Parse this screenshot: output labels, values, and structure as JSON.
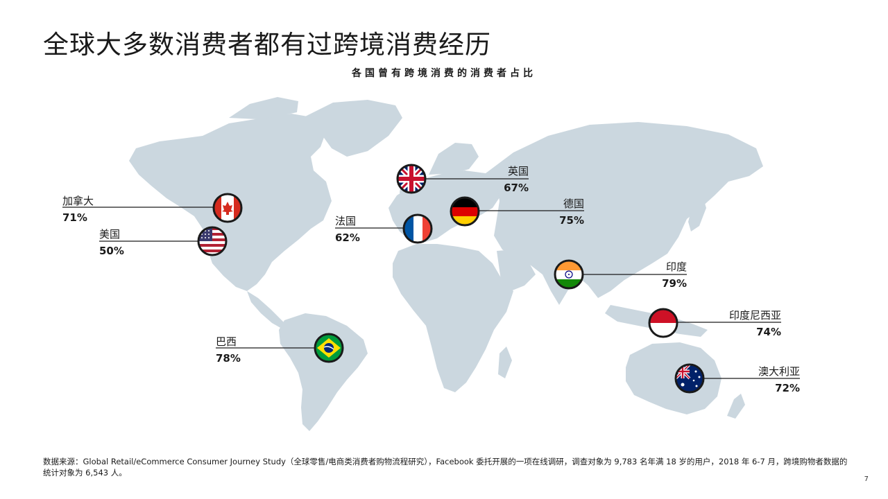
{
  "title": "全球大多数消费者都有过跨境消费经历",
  "footer": "数据来源：Global Retail/eCommerce Consumer Journey Study（全球零售/电商类消费者购物流程研究），Facebook 委托开展的一项在线调研，调查对象为 9,783 名年满 18 岁的用户，2018 年 6-7 月，跨境购物者数据的统计对象为 6,543 人。",
  "page_number": "7",
  "colors": {
    "land": "#cbd7df",
    "line": "#1a1a1a",
    "flag_ring": "#1a1a1a"
  },
  "chart_data": {
    "type": "map",
    "title": "各国曾有跨境消费的消费者占比",
    "unit": "%",
    "points": [
      {
        "country": "加拿大",
        "label": "71%",
        "value": 71,
        "flag": "canada-flag-icon"
      },
      {
        "country": "美国",
        "label": "50%",
        "value": 50,
        "flag": "usa-flag-icon"
      },
      {
        "country": "英国",
        "label": "67%",
        "value": 67,
        "flag": "uk-flag-icon"
      },
      {
        "country": "法国",
        "label": "62%",
        "value": 62,
        "flag": "france-flag-icon"
      },
      {
        "country": "德国",
        "label": "75%",
        "value": 75,
        "flag": "germany-flag-icon"
      },
      {
        "country": "印度",
        "label": "79%",
        "value": 79,
        "flag": "india-flag-icon"
      },
      {
        "country": "印度尼西亚",
        "label": "74%",
        "value": 74,
        "flag": "indonesia-flag-icon"
      },
      {
        "country": "巴西",
        "label": "78%",
        "value": 78,
        "flag": "brazil-flag-icon"
      },
      {
        "country": "澳大利亚",
        "label": "72%",
        "value": 72,
        "flag": "australia-flag-icon"
      }
    ]
  }
}
